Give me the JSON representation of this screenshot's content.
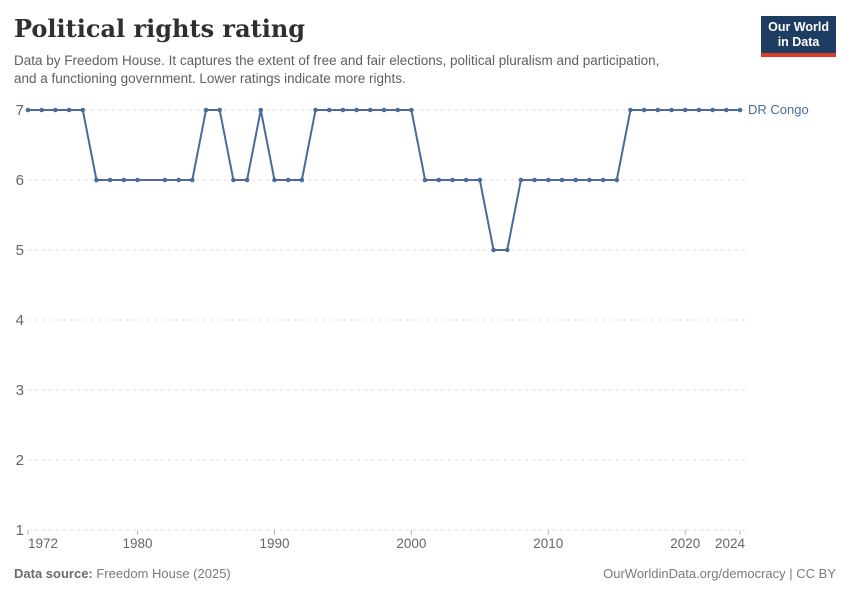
{
  "header": {
    "title": "Political rights rating",
    "subtitle_line1": "Data by Freedom House. It captures the extent of free and fair elections, political pluralism and participation,",
    "subtitle_line2": "and a functioning government. Lower ratings indicate more rights.",
    "logo": {
      "line1": "Our World",
      "line2": "in Data"
    }
  },
  "footer": {
    "source_label": "Data source:",
    "source_value": " Freedom House (2025)",
    "attribution": "OurWorldinData.org/democracy | CC BY"
  },
  "colors": {
    "line": "#4c6a9c",
    "grid": "#dcdcdc",
    "axis_text": "#666666",
    "logo_bg": "#1d3d63",
    "logo_stripe": "#dc3a2b"
  },
  "chart_data": {
    "type": "line",
    "title": "Political rights rating",
    "xlabel": "",
    "ylabel": "",
    "xlim": [
      1972,
      2024
    ],
    "ylim": [
      1,
      7
    ],
    "x_ticks": [
      1972,
      1980,
      1990,
      2000,
      2010,
      2020,
      2024
    ],
    "y_ticks": [
      1,
      2,
      3,
      4,
      5,
      6,
      7
    ],
    "grid": "horizontal-dashed",
    "legend_position": "end-of-line-label",
    "series": [
      {
        "name": "DR Congo",
        "color": "#4c6a9c",
        "points": [
          [
            1972,
            7
          ],
          [
            1973,
            7
          ],
          [
            1974,
            7
          ],
          [
            1975,
            7
          ],
          [
            1976,
            7
          ],
          [
            1977,
            6
          ],
          [
            1978,
            6
          ],
          [
            1979,
            6
          ],
          [
            1980,
            6
          ],
          [
            1982,
            6
          ],
          [
            1983,
            6
          ],
          [
            1984,
            6
          ],
          [
            1985,
            7
          ],
          [
            1986,
            7
          ],
          [
            1987,
            6
          ],
          [
            1988,
            6
          ],
          [
            1989,
            7
          ],
          [
            1990,
            6
          ],
          [
            1991,
            6
          ],
          [
            1992,
            6
          ],
          [
            1993,
            7
          ],
          [
            1994,
            7
          ],
          [
            1995,
            7
          ],
          [
            1996,
            7
          ],
          [
            1997,
            7
          ],
          [
            1998,
            7
          ],
          [
            1999,
            7
          ],
          [
            2000,
            7
          ],
          [
            2001,
            6
          ],
          [
            2002,
            6
          ],
          [
            2003,
            6
          ],
          [
            2004,
            6
          ],
          [
            2005,
            6
          ],
          [
            2006,
            5
          ],
          [
            2007,
            5
          ],
          [
            2008,
            6
          ],
          [
            2009,
            6
          ],
          [
            2010,
            6
          ],
          [
            2011,
            6
          ],
          [
            2012,
            6
          ],
          [
            2013,
            6
          ],
          [
            2014,
            6
          ],
          [
            2015,
            6
          ],
          [
            2016,
            7
          ],
          [
            2017,
            7
          ],
          [
            2018,
            7
          ],
          [
            2019,
            7
          ],
          [
            2020,
            7
          ],
          [
            2021,
            7
          ],
          [
            2022,
            7
          ],
          [
            2023,
            7
          ],
          [
            2024,
            7
          ]
        ]
      }
    ]
  }
}
